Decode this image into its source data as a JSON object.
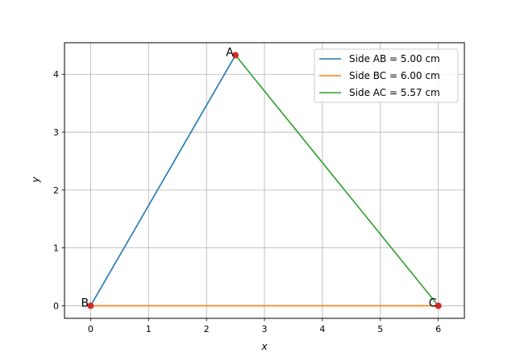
{
  "chart_data": {
    "type": "line",
    "xlabel": "x",
    "ylabel": "y",
    "xlim": [
      -0.45,
      6.45
    ],
    "ylim": [
      -0.2165,
      4.5465
    ],
    "xticks": [
      0,
      1,
      2,
      3,
      4,
      5,
      6
    ],
    "yticks": [
      0,
      1,
      2,
      3,
      4
    ],
    "grid": true,
    "legend_position": "upper-right",
    "series": [
      {
        "name": "Side AB = 5.00 cm",
        "color": "#1f77b4",
        "points": [
          [
            0,
            0
          ],
          [
            2.5,
            4.33
          ]
        ]
      },
      {
        "name": "Side BC = 6.00 cm",
        "color": "#ff7f0e",
        "points": [
          [
            0,
            0
          ],
          [
            6,
            0
          ]
        ]
      },
      {
        "name": "Side AC = 5.57 cm",
        "color": "#2ca02c",
        "points": [
          [
            2.5,
            4.33
          ],
          [
            6,
            0
          ]
        ]
      }
    ],
    "vertices": [
      {
        "label": "A",
        "x": 2.5,
        "y": 4.33
      },
      {
        "label": "B",
        "x": 0,
        "y": 0
      },
      {
        "label": "C",
        "x": 6,
        "y": 0
      }
    ],
    "vertex_color": "#d62728"
  }
}
